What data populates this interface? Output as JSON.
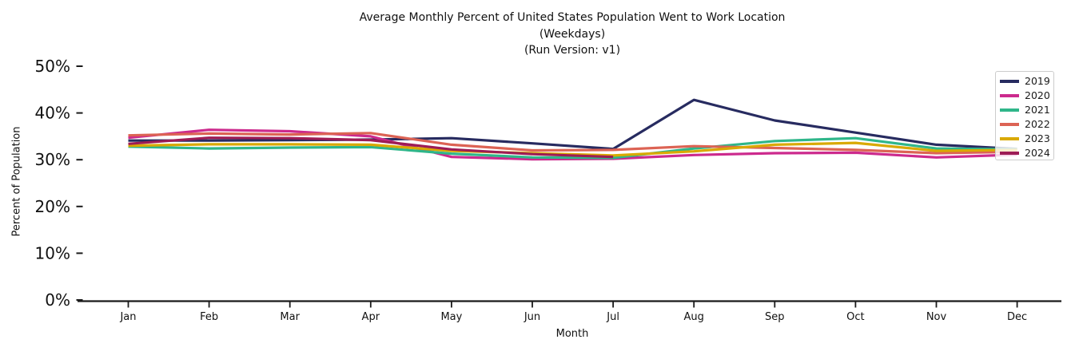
{
  "chart_data": {
    "type": "line",
    "title": "Average Monthly Percent of United States Population Went to Work Location",
    "subtitle": "(Weekdays)",
    "run_version_line": "(Run Version: v1)",
    "xlabel": "Month",
    "ylabel": "Percent of Population",
    "x_categories": [
      "Jan",
      "Feb",
      "Mar",
      "Apr",
      "May",
      "Jun",
      "Jul",
      "Aug",
      "Sep",
      "Oct",
      "Nov",
      "Dec"
    ],
    "y_tick_labels": [
      "0%",
      "10%",
      "20%",
      "30%",
      "40%",
      "50%"
    ],
    "y_tick_values": [
      0,
      10,
      20,
      30,
      40,
      50
    ],
    "ylim": [
      0,
      50
    ],
    "units": "percent",
    "grid": false,
    "legend_position": "upper right",
    "axis_color": "#1a1a1a",
    "series": [
      {
        "name": "2019",
        "color": "#272b60",
        "values": [
          34.1,
          34.1,
          34.2,
          34.3,
          34.6,
          33.5,
          32.3,
          42.8,
          38.4,
          35.8,
          33.2,
          32.3
        ]
      },
      {
        "name": "2020",
        "color": "#cc2a8d",
        "values": [
          34.7,
          36.4,
          36.1,
          35.0,
          30.6,
          30.1,
          30.2,
          31.0,
          31.4,
          31.5,
          30.5,
          31.1
        ]
      },
      {
        "name": "2021",
        "color": "#2fb68a",
        "values": [
          32.8,
          32.4,
          32.6,
          32.7,
          31.3,
          30.5,
          30.4,
          32.4,
          34.0,
          34.6,
          32.4,
          32.2
        ]
      },
      {
        "name": "2022",
        "color": "#dc6354",
        "values": [
          35.2,
          35.6,
          35.4,
          35.7,
          33.2,
          32.0,
          32.1,
          32.9,
          32.5,
          32.1,
          31.4,
          31.7
        ]
      },
      {
        "name": "2023",
        "color": "#d9a902",
        "values": [
          33.0,
          33.3,
          33.3,
          33.2,
          31.9,
          31.4,
          30.9,
          31.8,
          33.2,
          33.6,
          31.9,
          32.1
        ]
      },
      {
        "name": "2024",
        "color": "#9d1c55",
        "values": [
          33.4,
          34.7,
          34.6,
          34.2,
          32.2,
          31.2,
          30.6,
          null,
          null,
          null,
          null,
          null
        ]
      }
    ]
  }
}
